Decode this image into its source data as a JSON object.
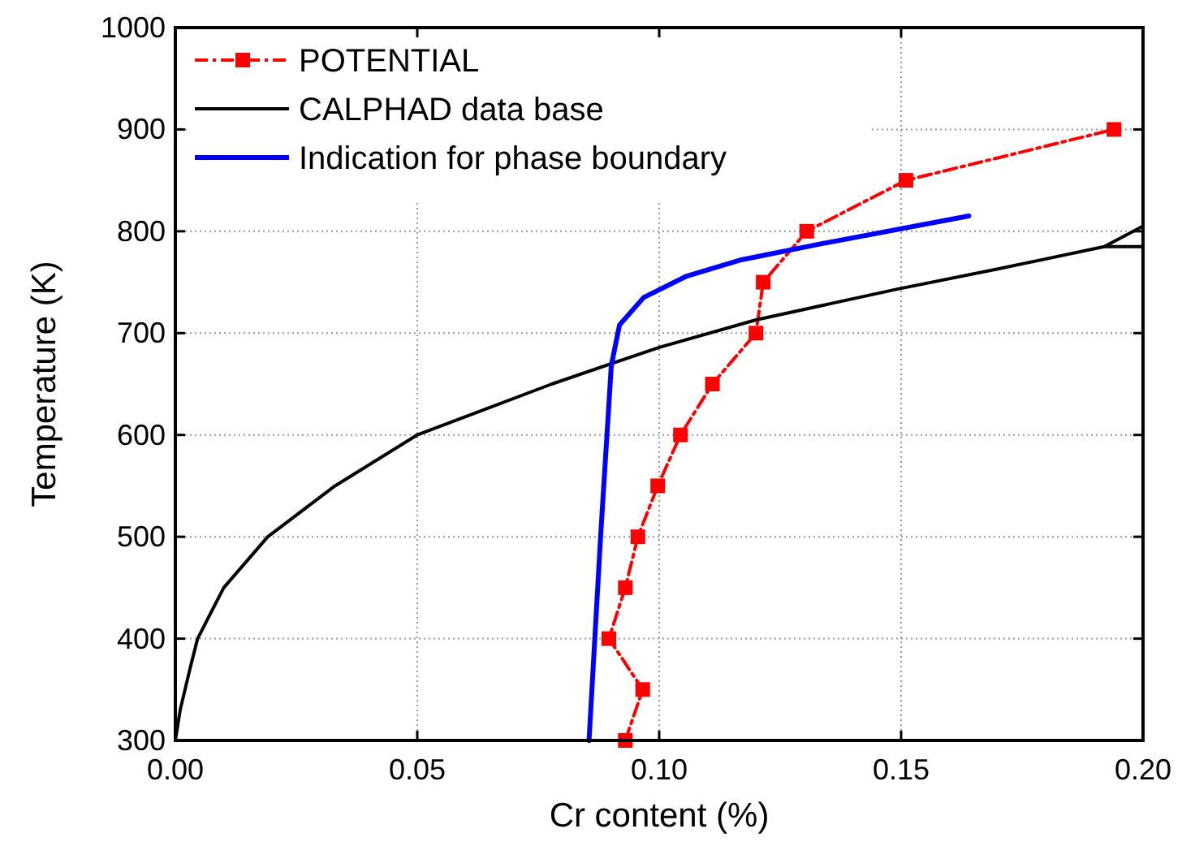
{
  "chart_data": {
    "type": "line",
    "xlabel": "Cr content (%)",
    "ylabel": "Temperature (K)",
    "xlim": [
      0,
      0.2
    ],
    "xticks": [
      {
        "value": 0,
        "label": "0.00"
      },
      {
        "value": 0.05,
        "label": "0.05"
      },
      {
        "value": 0.1,
        "label": "0.10"
      },
      {
        "value": 0.15,
        "label": "0.15"
      },
      {
        "value": 0.2,
        "label": "0.20"
      }
    ],
    "ylim": [
      300,
      1000
    ],
    "yticks": [
      300,
      400,
      500,
      600,
      700,
      800,
      900,
      1000
    ],
    "grid": true,
    "legend": "top left",
    "series": [
      {
        "name": "POTENTIAL",
        "color": "#ff0000",
        "marker": "square",
        "line_style": "dashed",
        "x": [
          0.093,
          0.0966,
          0.0896,
          0.093,
          0.0956,
          0.0997,
          0.1044,
          0.111,
          0.12,
          0.1215,
          0.1305,
          0.151,
          0.194
        ],
        "values": [
          300,
          350,
          400,
          450,
          500,
          550,
          600,
          650,
          700,
          750,
          800,
          850,
          900
        ]
      },
      {
        "name": "CALPHAD data base",
        "color": "#000000",
        "marker": "none",
        "line_style": "solid",
        "x": [
          0,
          0.001,
          0.003,
          0.0046,
          0.01,
          0.0191,
          0.033,
          0.05,
          0.0778,
          0.1,
          0.12,
          0.149,
          0.17,
          0.192,
          0.2
        ],
        "values": [
          300,
          330,
          370,
          400,
          450,
          500,
          550,
          600,
          650,
          686,
          713,
          743,
          763,
          785,
          805
        ]
      },
      {
        "color": "#000000",
        "marker": "none",
        "line_style": "solid",
        "x": [
          0.192,
          0.2
        ],
        "values": [
          785,
          785
        ]
      },
      {
        "name": "Indication for phase boundary",
        "color": "#0000ff",
        "marker": "none",
        "line_style": "solid",
        "x": [
          0.0855,
          0.0879,
          0.0901,
          0.0918,
          0.0968,
          0.1057,
          0.117,
          0.1338,
          0.164
        ],
        "values": [
          300,
          501,
          668,
          708,
          735,
          756,
          772,
          788,
          815
        ]
      }
    ]
  }
}
